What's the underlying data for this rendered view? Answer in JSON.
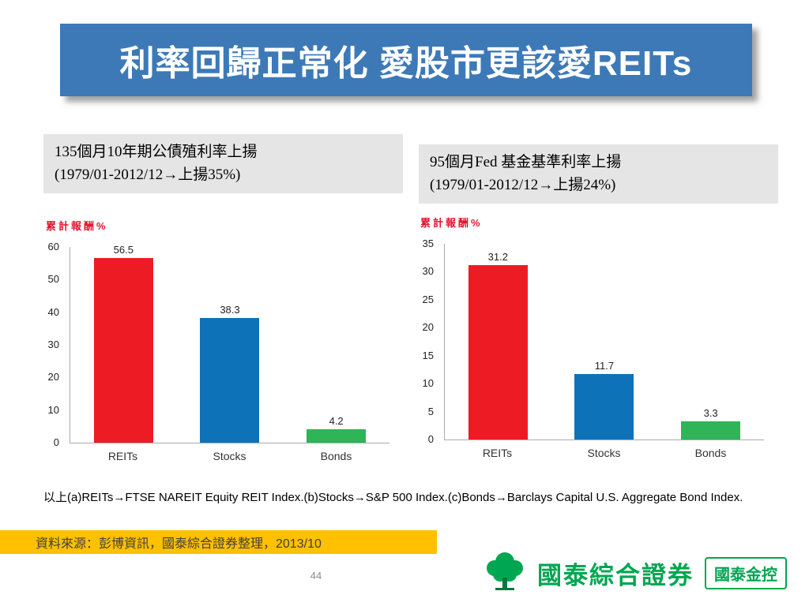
{
  "title": "利率回歸正常化 愛股市更該愛REITs",
  "captions": {
    "left": {
      "line1": "135個月10年期公債殖利率上揚",
      "line2": "(1979/01-2012/12→上揚35%)"
    },
    "right": {
      "line1": "95個月Fed 基金基準利率上揚",
      "line2": "(1979/01-2012/12→上揚24%)"
    }
  },
  "chart_data": [
    {
      "type": "bar",
      "ylabel": "累計報酬%",
      "categories": [
        "REITs",
        "Stocks",
        "Bonds"
      ],
      "values": [
        56.5,
        38.3,
        4.2
      ],
      "bar_colors": [
        "#ed1c24",
        "#0e72b8",
        "#2fb457"
      ],
      "ylim": [
        0,
        60
      ],
      "yticks": [
        0,
        10,
        20,
        30,
        40,
        50,
        60
      ],
      "grid": false,
      "legend": "none"
    },
    {
      "type": "bar",
      "ylabel": "累計報酬%",
      "categories": [
        "REITs",
        "Stocks",
        "Bonds"
      ],
      "values": [
        31.2,
        11.7,
        3.3
      ],
      "bar_colors": [
        "#ed1c24",
        "#0e72b8",
        "#2fb457"
      ],
      "ylim": [
        0,
        35
      ],
      "yticks": [
        0,
        5,
        10,
        15,
        20,
        25,
        30,
        35
      ],
      "grid": false,
      "legend": "none"
    }
  ],
  "footnote": "以上(a)REITs→FTSE NAREIT Equity REIT Index.(b)Stocks→S&P 500 Index.(c)Bonds→Barclays Capital U.S. Aggregate Bond Index.",
  "source": "資料來源：彭博資訊，國泰綜合證券整理，2013/10",
  "page_number": "44",
  "logo": {
    "brand": "國泰綜合證券",
    "badge": "國泰金控"
  },
  "colors": {
    "header_bg": "#3d79b7",
    "bar_red": "#ed1c24",
    "bar_blue": "#0e72b8",
    "bar_green": "#2fb457",
    "source_bg": "#ffc000",
    "brand_green": "#00a651"
  }
}
